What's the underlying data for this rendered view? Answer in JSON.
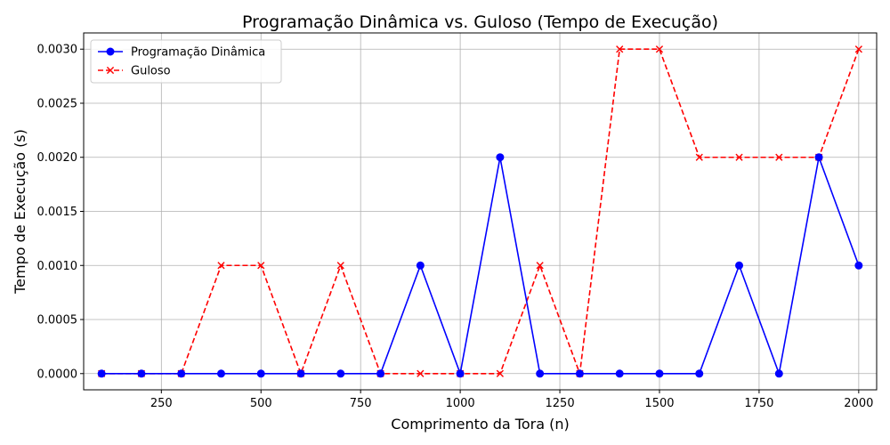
{
  "chart_data": {
    "type": "line",
    "title": "Programação Dinâmica vs. Guloso (Tempo de Execução)",
    "xlabel": "Comprimento da Tora (n)",
    "ylabel": "Tempo de Execução (s)",
    "x": [
      100,
      200,
      300,
      400,
      500,
      600,
      700,
      800,
      900,
      1000,
      1100,
      1200,
      1300,
      1400,
      1500,
      1600,
      1700,
      1800,
      1900,
      2000
    ],
    "xlim": [
      55,
      2045
    ],
    "ylim": [
      -0.00015,
      0.00315
    ],
    "xticks": [
      250,
      500,
      750,
      1000,
      1250,
      1500,
      1750,
      2000
    ],
    "xtick_labels": [
      "250",
      "500",
      "750",
      "1000",
      "1250",
      "1500",
      "1750",
      "2000"
    ],
    "yticks": [
      0,
      0.0005,
      0.001,
      0.0015,
      0.002,
      0.0025,
      0.003
    ],
    "ytick_labels": [
      "0.0000",
      "0.0005",
      "0.0010",
      "0.0015",
      "0.0020",
      "0.0025",
      "0.0030"
    ],
    "grid": true,
    "legend_position": "top-left",
    "series": [
      {
        "name": "Programação Dinâmica",
        "color": "#0000ff",
        "marker": "circle",
        "linestyle": "solid",
        "values": [
          0,
          0,
          0,
          0,
          0,
          0,
          0,
          0,
          0.001,
          0,
          0.002,
          0,
          0,
          0,
          0,
          0,
          0.001,
          0,
          0.002,
          0.001
        ]
      },
      {
        "name": "Guloso",
        "color": "#ff0000",
        "marker": "x",
        "linestyle": "dashed",
        "values": [
          0,
          0,
          0,
          0.001,
          0.001,
          0,
          0.001,
          0,
          0,
          0,
          0,
          0.001,
          0,
          0.003,
          0.003,
          0.002,
          0.002,
          0.002,
          0.002,
          0.003
        ]
      }
    ]
  }
}
